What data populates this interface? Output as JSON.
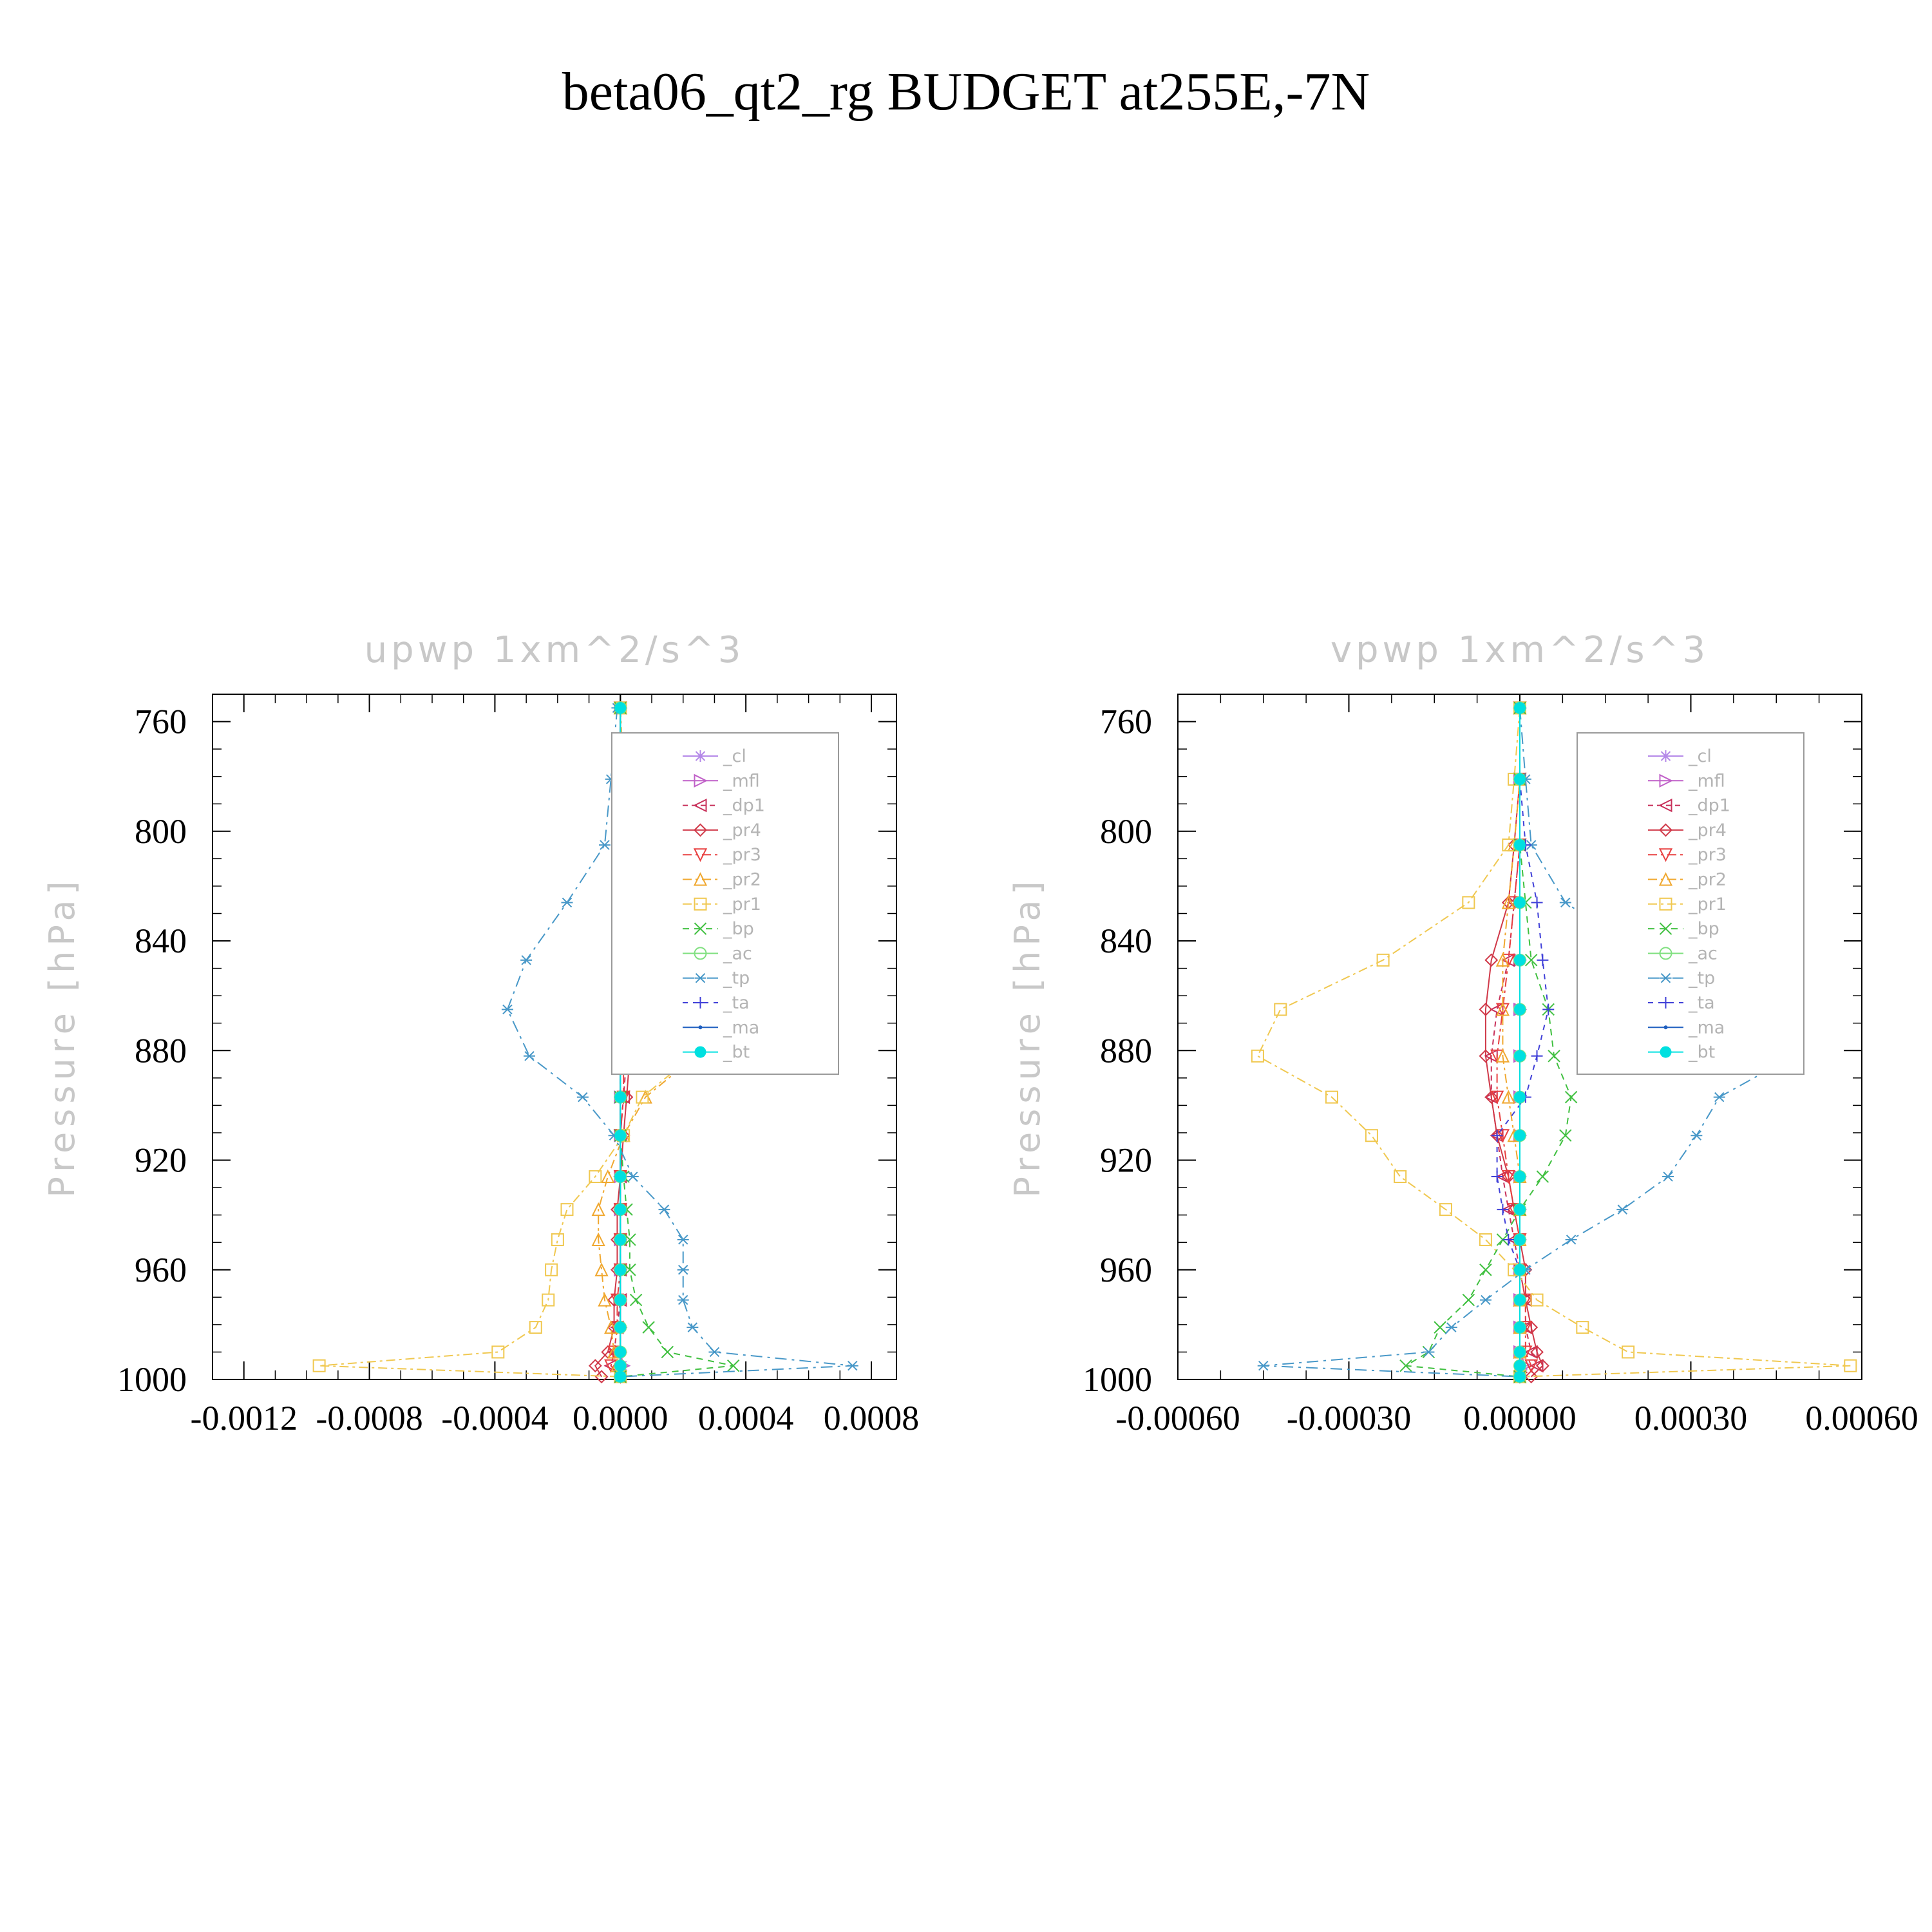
{
  "title": "beta06_qt2_rg  BUDGET at255E,-7N",
  "colors": {
    "_cl": "#b488e8",
    "_mfl": "#c060c8",
    "_dp1": "#c8305a",
    "_pr4": "#d03848",
    "_pr3": "#e84040",
    "_pr2": "#f0a830",
    "_pr1": "#f0c850",
    "_bp": "#40c040",
    "_ac": "#80e080",
    "_tp": "#4898c8",
    "_ta": "#4040d8",
    "_ma": "#2060c0",
    "_bt": "#00e0e0",
    "frame": "#000000"
  },
  "chart_data": [
    {
      "type": "line",
      "title": "upwp   1xm^2/s^3",
      "ylabel": "Pressure [hPa]",
      "xlabel": "",
      "ylim": [
        1000,
        750
      ],
      "xlim": [
        -0.0013,
        0.00088
      ],
      "xticks": [
        "-0.0012",
        "-0.0008",
        "-0.0004",
        "0.0000",
        "0.0004",
        "0.0008"
      ],
      "xtick_values": [
        -0.0012,
        -0.0008,
        -0.0004,
        0.0,
        0.0004,
        0.0008
      ],
      "yticks": [
        "760",
        "800",
        "840",
        "880",
        "920",
        "960",
        "1000"
      ],
      "ytick_values": [
        760,
        800,
        840,
        880,
        920,
        960,
        1000
      ],
      "legend_position": "top-right",
      "y": [
        755,
        781,
        805,
        826,
        847,
        865,
        882,
        897,
        911,
        926,
        938,
        949,
        960,
        971,
        981,
        990,
        995,
        999
      ],
      "series": [
        {
          "name": "_cl",
          "values": [
            0,
            0,
            0,
            0,
            0,
            0,
            0,
            0,
            0,
            0,
            0,
            0,
            0,
            0,
            0,
            0,
            5e-06,
            0
          ]
        },
        {
          "name": "_mfl",
          "values": [
            0,
            0,
            0,
            0,
            0,
            0,
            0,
            0,
            0,
            0,
            0,
            0,
            0,
            0,
            0,
            0,
            1e-05,
            0
          ]
        },
        {
          "name": "_dp1",
          "values": [
            0,
            0,
            1e-05,
            1e-05,
            1e-05,
            2e-05,
            2e-05,
            1e-05,
            0,
            0,
            0,
            0,
            0,
            0,
            -1e-05,
            -2e-05,
            -3e-05,
            0
          ]
        },
        {
          "name": "_pr4",
          "values": [
            0,
            0,
            1e-05,
            2e-05,
            4e-05,
            5e-05,
            3e-05,
            2e-05,
            1e-05,
            0,
            -1e-05,
            -1e-05,
            -1e-05,
            -2e-05,
            -2e-05,
            -4e-05,
            -8e-05,
            -6e-05
          ]
        },
        {
          "name": "_pr3",
          "values": [
            0,
            0,
            0,
            1e-05,
            1e-05,
            1e-05,
            1e-05,
            1e-05,
            0,
            0,
            0,
            0,
            0,
            -1e-05,
            -1e-05,
            -2e-05,
            -3e-05,
            0
          ]
        },
        {
          "name": "_pr2",
          "values": [
            0,
            1e-05,
            4e-05,
            0.00012,
            0.00022,
            0.00028,
            0.00024,
            8e-05,
            1e-05,
            -4e-05,
            -7e-05,
            -7e-05,
            -6e-05,
            -5e-05,
            -3e-05,
            -2e-05,
            -1e-05,
            0
          ]
        },
        {
          "name": "_pr1",
          "values": [
            0,
            1e-05,
            5e-05,
            0.00016,
            0.00026,
            0.00032,
            0.00023,
            7e-05,
            1e-05,
            -8e-05,
            -0.00017,
            -0.0002,
            -0.00022,
            -0.00023,
            -0.00027,
            -0.00039,
            -0.00096,
            0
          ]
        },
        {
          "name": "_bp",
          "values": [
            0,
            0,
            0,
            0,
            0,
            0,
            0,
            0,
            0,
            1e-05,
            2e-05,
            3e-05,
            3e-05,
            5e-05,
            9e-05,
            0.00015,
            0.00036,
            0
          ]
        },
        {
          "name": "_ac",
          "values": [
            0,
            0,
            0,
            0,
            0,
            0,
            0,
            0,
            0,
            0,
            0,
            0,
            0,
            0,
            0,
            0,
            0,
            0
          ]
        },
        {
          "name": "_tp",
          "values": [
            -1e-05,
            -3e-05,
            -5e-05,
            -0.00017,
            -0.0003,
            -0.00036,
            -0.00029,
            -0.00012,
            -2e-05,
            4e-05,
            0.00014,
            0.0002,
            0.0002,
            0.0002,
            0.00023,
            0.0003,
            0.00074,
            0
          ]
        },
        {
          "name": "_ta",
          "values": [
            0,
            0,
            -1e-05,
            -1e-05,
            -1e-05,
            0,
            0,
            0,
            0,
            0,
            0,
            0,
            0,
            0,
            0,
            0,
            0,
            0
          ]
        },
        {
          "name": "_ma",
          "values": [
            0,
            0,
            0,
            0,
            0,
            0,
            0,
            0,
            0,
            0,
            0,
            0,
            0,
            0,
            0,
            0,
            0,
            0
          ]
        },
        {
          "name": "_bt",
          "values": [
            0,
            0,
            0,
            0,
            0,
            0,
            0,
            0,
            0,
            0,
            0,
            0,
            0,
            0,
            0,
            0,
            0,
            0
          ]
        }
      ]
    },
    {
      "type": "line",
      "title": "vpwp   1xm^2/s^3",
      "ylabel": "Pressure [hPa]",
      "xlabel": "",
      "ylim": [
        1000,
        750
      ],
      "xlim": [
        -0.0006,
        0.0006
      ],
      "xticks": [
        "-0.00060",
        "-0.00030",
        "0.00000",
        "0.00030",
        "0.00060"
      ],
      "xtick_values": [
        -0.0006,
        -0.0003,
        0.0,
        0.0003,
        0.0006
      ],
      "yticks": [
        "760",
        "800",
        "840",
        "880",
        "920",
        "960",
        "1000"
      ],
      "ytick_values": [
        760,
        800,
        840,
        880,
        920,
        960,
        1000
      ],
      "legend_position": "top-right",
      "y": [
        755,
        781,
        805,
        826,
        847,
        865,
        882,
        897,
        911,
        926,
        938,
        949,
        960,
        971,
        981,
        990,
        995,
        999
      ],
      "series": [
        {
          "name": "_cl",
          "values": [
            0,
            0,
            0,
            0,
            0,
            0,
            0,
            0,
            0,
            0,
            0,
            0,
            0,
            0,
            0,
            0,
            5e-06,
            0
          ]
        },
        {
          "name": "_mfl",
          "values": [
            0,
            0,
            0,
            0,
            0,
            0,
            0,
            0,
            0,
            0,
            0,
            0,
            0,
            0,
            0,
            0,
            1e-05,
            0
          ]
        },
        {
          "name": "_dp1",
          "values": [
            0,
            0,
            0,
            -1e-05,
            -2e-05,
            -4e-05,
            -5e-05,
            -5e-05,
            -4e-05,
            -3e-05,
            -2e-05,
            -1e-05,
            0,
            1e-05,
            1e-05,
            2e-05,
            3e-05,
            0
          ]
        },
        {
          "name": "_pr4",
          "values": [
            0,
            0,
            -1e-05,
            -2e-05,
            -5e-05,
            -6e-05,
            -6e-05,
            -5e-05,
            -4e-05,
            -2e-05,
            -1e-05,
            0,
            1e-05,
            1e-05,
            2e-05,
            3e-05,
            4e-05,
            2e-05
          ]
        },
        {
          "name": "_pr3",
          "values": [
            0,
            0,
            0,
            -1e-05,
            -2e-05,
            -3e-05,
            -4e-05,
            -4e-05,
            -3e-05,
            -2e-05,
            -1e-05,
            0,
            0,
            1e-05,
            1e-05,
            1e-05,
            2e-05,
            0
          ]
        },
        {
          "name": "_pr2",
          "values": [
            0,
            0,
            -1e-05,
            -2e-05,
            -3e-05,
            -3e-05,
            -3e-05,
            -2e-05,
            -1e-05,
            0,
            0,
            0,
            0,
            0,
            0,
            0,
            0,
            0
          ]
        },
        {
          "name": "_pr1",
          "values": [
            0,
            -1e-05,
            -2e-05,
            -9e-05,
            -0.00024,
            -0.00042,
            -0.00046,
            -0.00033,
            -0.00026,
            -0.00021,
            -0.00013,
            -6e-05,
            -1e-05,
            3e-05,
            0.00011,
            0.00019,
            0.00058,
            0
          ]
        },
        {
          "name": "_bp",
          "values": [
            0,
            0,
            0,
            1e-05,
            2e-05,
            5e-05,
            6e-05,
            9e-05,
            8e-05,
            4e-05,
            0,
            -3e-05,
            -6e-05,
            -9e-05,
            -0.00014,
            -0.00016,
            -0.0002,
            0
          ]
        },
        {
          "name": "_ac",
          "values": [
            0,
            0,
            0,
            0,
            0,
            0,
            0,
            0,
            0,
            0,
            0,
            0,
            0,
            0,
            0,
            0,
            0,
            0
          ]
        },
        {
          "name": "_tp",
          "values": [
            0,
            1e-05,
            2e-05,
            8e-05,
            0.00023,
            0.00044,
            0.00048,
            0.00035,
            0.00031,
            0.00026,
            0.00018,
            9e-05,
            1e-05,
            -6e-05,
            -0.00012,
            -0.00016,
            -0.00045,
            0
          ]
        },
        {
          "name": "_ta",
          "values": [
            0,
            0,
            1e-05,
            3e-05,
            4e-05,
            5e-05,
            3e-05,
            1e-05,
            -4e-05,
            -4e-05,
            -3e-05,
            -2e-05,
            0,
            0,
            0,
            0,
            0,
            0
          ]
        },
        {
          "name": "_ma",
          "values": [
            0,
            0,
            0,
            0,
            0,
            0,
            0,
            0,
            0,
            0,
            0,
            0,
            0,
            0,
            0,
            0,
            0,
            0
          ]
        },
        {
          "name": "_bt",
          "values": [
            0,
            0,
            0,
            0,
            0,
            0,
            0,
            0,
            0,
            0,
            0,
            0,
            0,
            0,
            0,
            0,
            0,
            0
          ]
        }
      ]
    }
  ]
}
